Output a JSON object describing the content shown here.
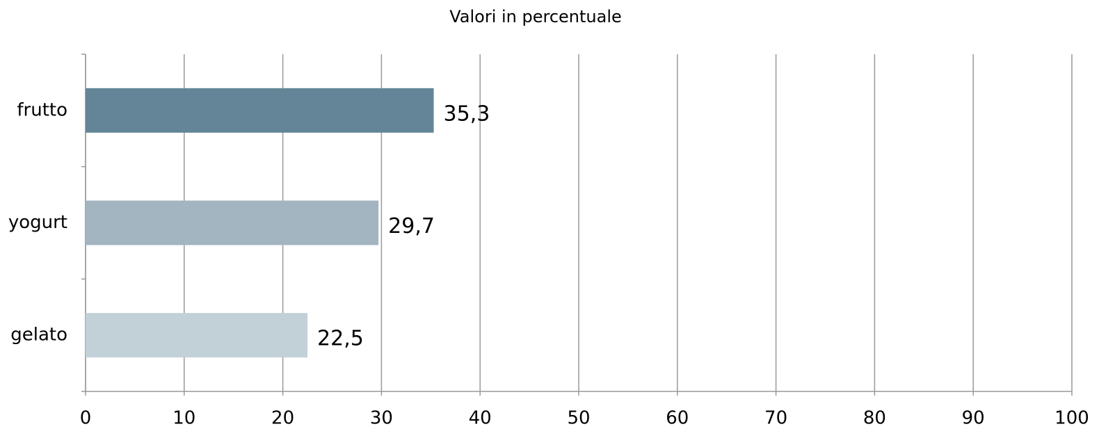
{
  "chart_data": {
    "type": "barh",
    "title": "Valori in percentuale",
    "categories": [
      "frutto",
      "yogurt",
      "gelato"
    ],
    "values": [
      35.3,
      29.7,
      22.5
    ],
    "value_labels": [
      "35,3",
      "29,7",
      "22,5"
    ],
    "colors": [
      "#638597",
      "#a2b5c0",
      "#c2d0d7"
    ],
    "xlim": [
      0,
      100
    ],
    "xticks": [
      0,
      10,
      20,
      30,
      40,
      50,
      60,
      70,
      80,
      90,
      100
    ],
    "grid": true
  }
}
